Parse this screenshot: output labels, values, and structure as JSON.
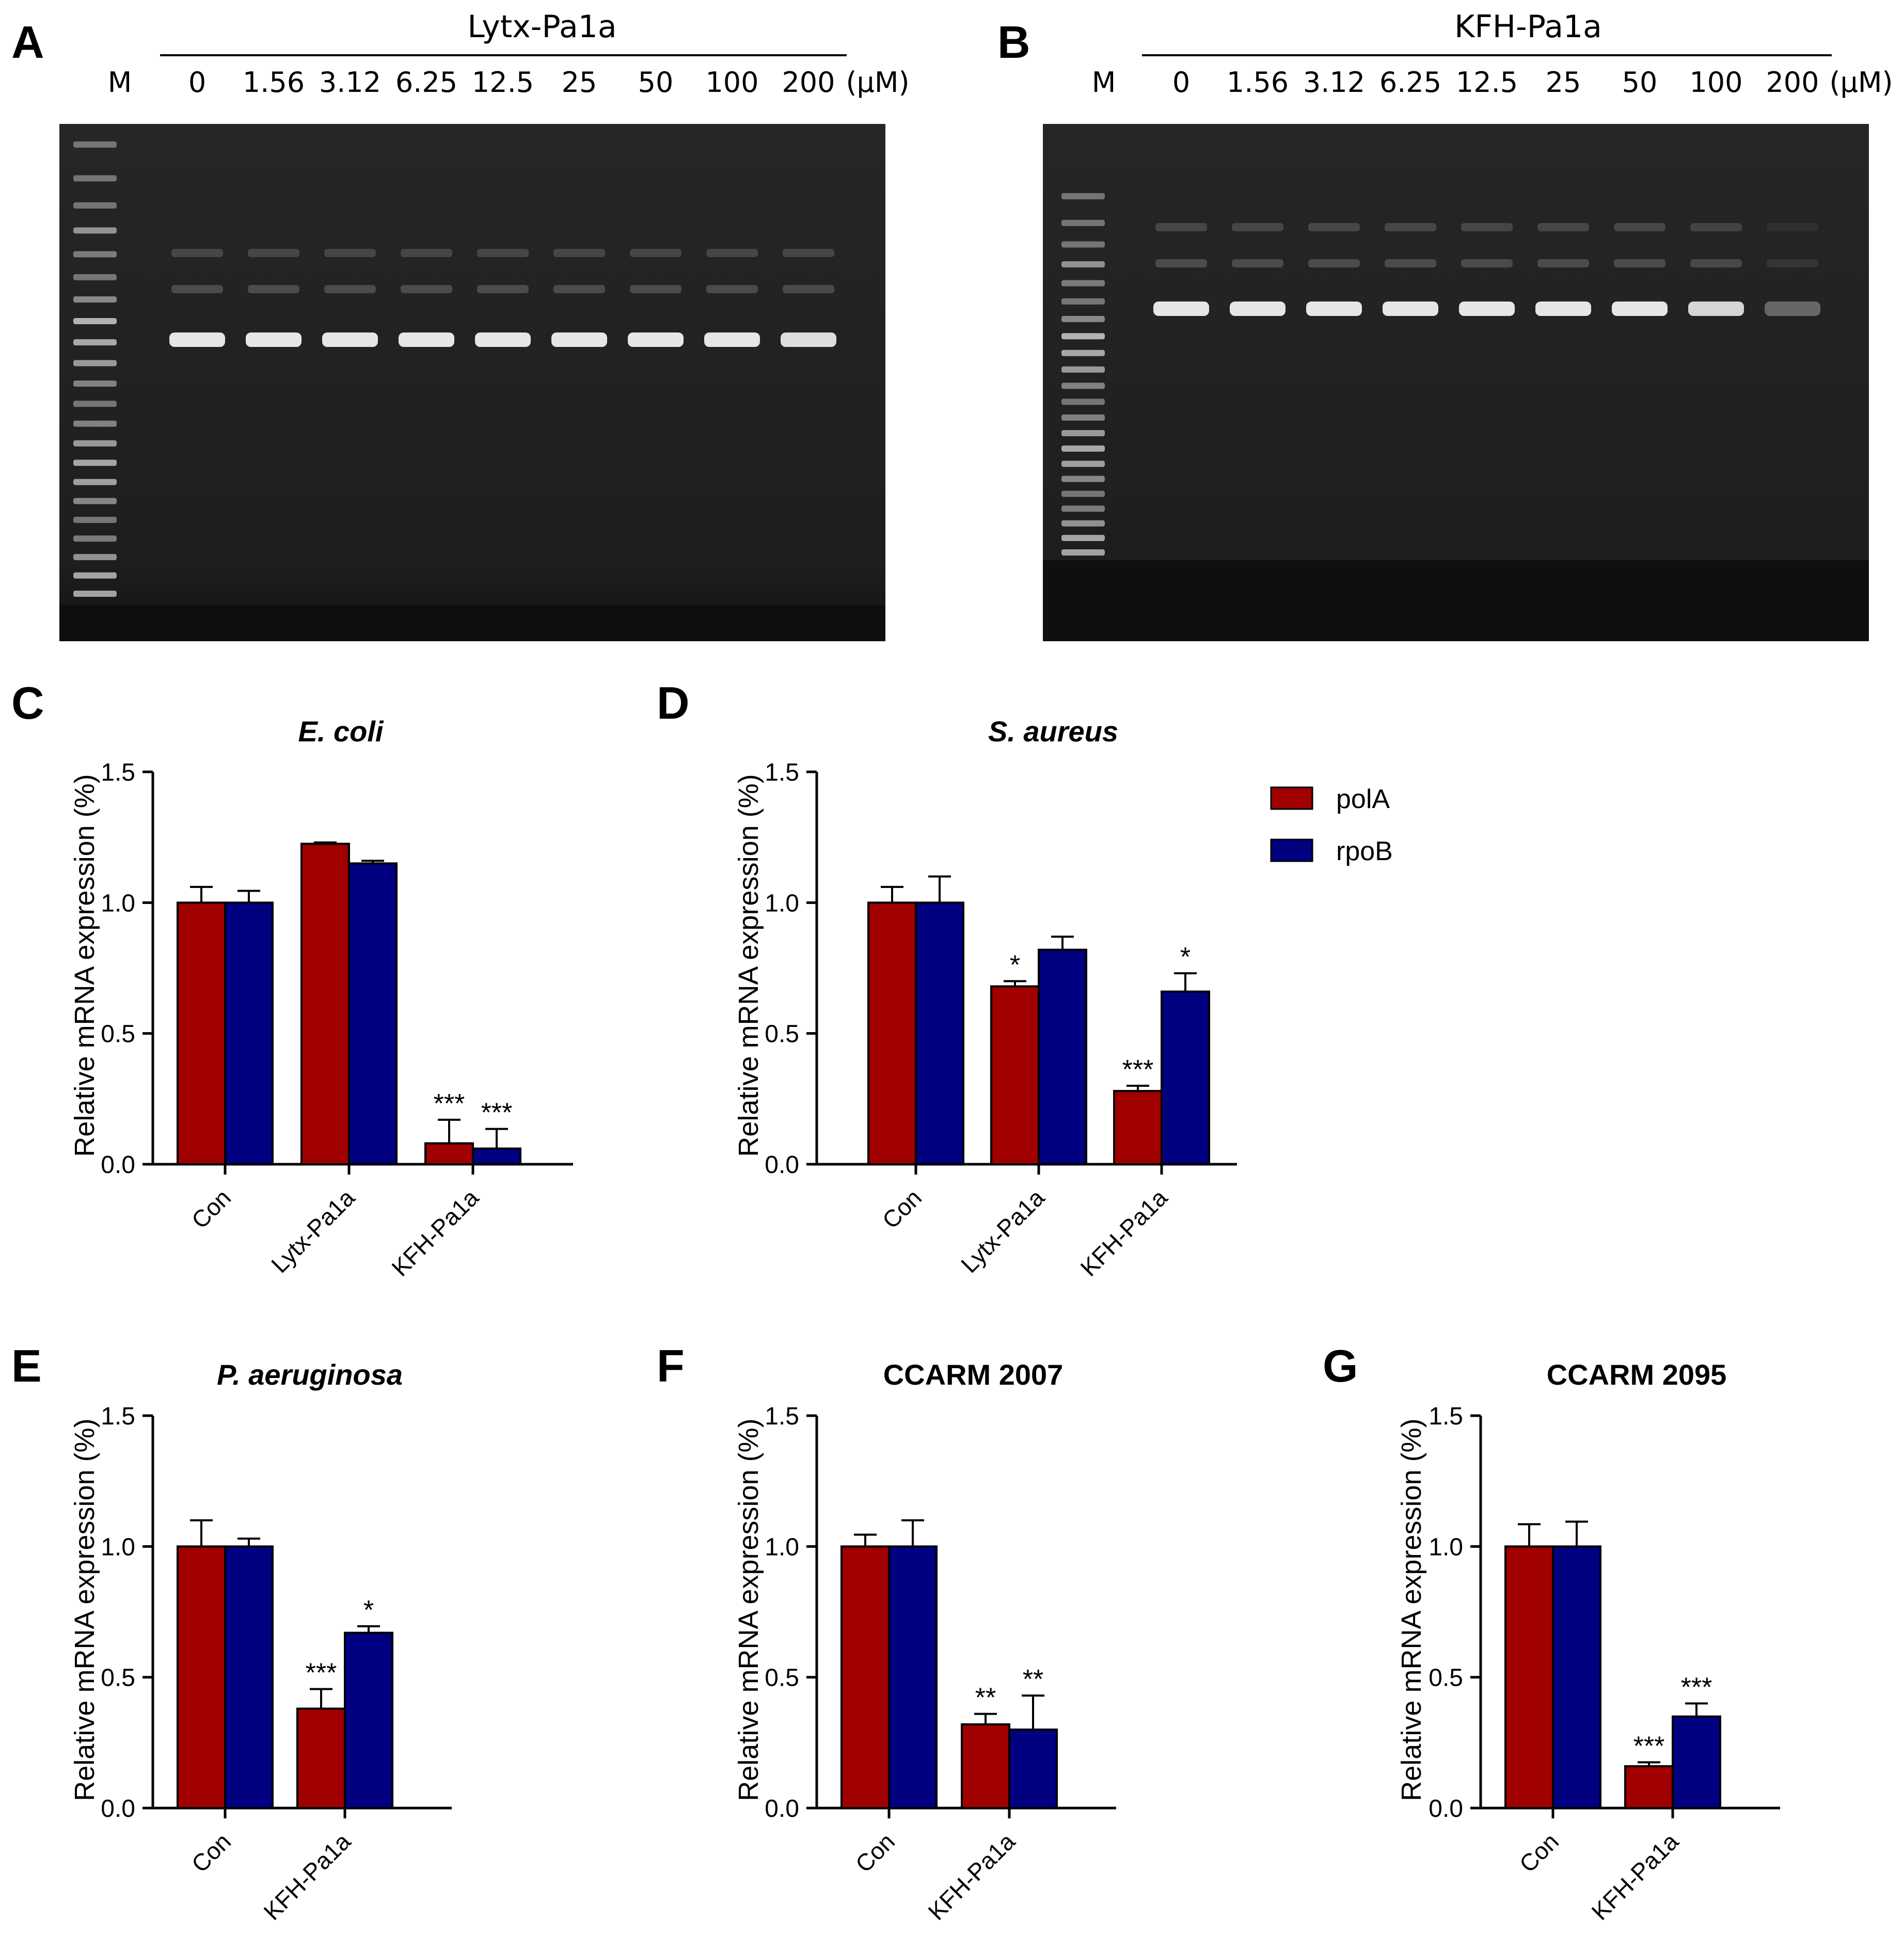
{
  "panels": {
    "A": "A",
    "B": "B",
    "C": "C",
    "D": "D",
    "E": "E",
    "F": "F",
    "G": "G"
  },
  "gels": [
    {
      "id": "A",
      "title": "Lytx-Pa1a",
      "marker_label": "M",
      "unit_label": "(µM)",
      "lanes": [
        "0",
        "1.56",
        "3.12",
        "6.25",
        "12.5",
        "25",
        "50",
        "100",
        "200"
      ],
      "band_intensity": [
        1,
        1,
        1,
        1,
        1,
        1,
        1,
        1,
        0.95
      ]
    },
    {
      "id": "B",
      "title": "KFH-Pa1a",
      "marker_label": "M",
      "unit_label": "(µM)",
      "lanes": [
        "0",
        "1.56",
        "3.12",
        "6.25",
        "12.5",
        "25",
        "50",
        "100",
        "200"
      ],
      "band_intensity": [
        1,
        1,
        1,
        1,
        1,
        1,
        1,
        0.9,
        0.25
      ]
    }
  ],
  "legend": [
    {
      "name": "polA",
      "color": "#a00000"
    },
    {
      "name": "rpoB",
      "color": "#000080"
    }
  ],
  "colors": {
    "polA": "#a00000",
    "rpoB": "#000080",
    "gel_bg": "#1c1c1c"
  },
  "chart_data": [
    {
      "id": "C",
      "type": "bar",
      "title": "E. coli",
      "title_italic": true,
      "ylabel": "Relative mRNA expression (%)",
      "ylim": [
        0,
        1.5
      ],
      "yticks": [
        "0.0",
        "0.5",
        "1.0",
        "1.5"
      ],
      "ytick_values": [
        0,
        0.5,
        1.0,
        1.5
      ],
      "categories": [
        "Con",
        "Lytx-Pa1a",
        "KFH-Pa1a"
      ],
      "series": [
        {
          "name": "polA",
          "values": [
            1.0,
            1.225,
            0.08
          ],
          "errors": [
            0.06,
            0.005,
            0.09
          ],
          "sig": [
            "",
            "",
            "***"
          ]
        },
        {
          "name": "rpoB",
          "values": [
            1.0,
            1.15,
            0.06
          ],
          "errors": [
            0.045,
            0.01,
            0.075
          ],
          "sig": [
            "",
            "",
            "***"
          ]
        }
      ]
    },
    {
      "id": "D",
      "type": "bar",
      "title": "S. aureus",
      "title_italic": true,
      "ylabel": "Relative mRNA expression (%)",
      "ylim": [
        0,
        1.5
      ],
      "yticks": [
        "0.0",
        "0.5",
        "1.0",
        "1.5"
      ],
      "ytick_values": [
        0,
        0.5,
        1.0,
        1.5
      ],
      "categories": [
        "Con",
        "Lytx-Pa1a",
        "KFH-Pa1a"
      ],
      "series": [
        {
          "name": "polA",
          "values": [
            1.0,
            0.68,
            0.28
          ],
          "errors": [
            0.06,
            0.02,
            0.02
          ],
          "sig": [
            "",
            "*",
            "***"
          ]
        },
        {
          "name": "rpoB",
          "values": [
            1.0,
            0.82,
            0.66
          ],
          "errors": [
            0.1,
            0.05,
            0.07
          ],
          "sig": [
            "",
            "",
            "*"
          ]
        }
      ]
    },
    {
      "id": "E",
      "type": "bar",
      "title": "P. aeruginosa",
      "title_italic": true,
      "ylabel": "Relative mRNA expression (%)",
      "ylim": [
        0,
        1.5
      ],
      "yticks": [
        "0.0",
        "0.5",
        "1.0",
        "1.5"
      ],
      "ytick_values": [
        0,
        0.5,
        1.0,
        1.5
      ],
      "categories": [
        "Con",
        "KFH-Pa1a"
      ],
      "series": [
        {
          "name": "polA",
          "values": [
            1.0,
            0.38
          ],
          "errors": [
            0.1,
            0.075
          ],
          "sig": [
            "",
            "***"
          ]
        },
        {
          "name": "rpoB",
          "values": [
            1.0,
            0.67
          ],
          "errors": [
            0.03,
            0.025
          ],
          "sig": [
            "",
            "*"
          ]
        }
      ]
    },
    {
      "id": "F",
      "type": "bar",
      "title": "CCARM 2007",
      "title_italic": false,
      "ylabel": "Relative mRNA expression (%)",
      "ylim": [
        0,
        1.5
      ],
      "yticks": [
        "0.0",
        "0.5",
        "1.0",
        "1.5"
      ],
      "ytick_values": [
        0,
        0.5,
        1.0,
        1.5
      ],
      "categories": [
        "Con",
        "KFH-Pa1a"
      ],
      "series": [
        {
          "name": "polA",
          "values": [
            1.0,
            0.32
          ],
          "errors": [
            0.045,
            0.04
          ],
          "sig": [
            "",
            "**"
          ]
        },
        {
          "name": "rpoB",
          "values": [
            1.0,
            0.3
          ],
          "errors": [
            0.1,
            0.13
          ],
          "sig": [
            "",
            "**"
          ]
        }
      ]
    },
    {
      "id": "G",
      "type": "bar",
      "title": "CCARM 2095",
      "title_italic": false,
      "ylabel": "Relative mRNA expression (%)",
      "ylim": [
        0,
        1.5
      ],
      "yticks": [
        "0.0",
        "0.5",
        "1.0",
        "1.5"
      ],
      "ytick_values": [
        0,
        0.5,
        1.0,
        1.5
      ],
      "categories": [
        "Con",
        "KFH-Pa1a"
      ],
      "series": [
        {
          "name": "polA",
          "values": [
            1.0,
            0.16
          ],
          "errors": [
            0.085,
            0.015
          ],
          "sig": [
            "",
            "***"
          ]
        },
        {
          "name": "rpoB",
          "values": [
            1.0,
            0.35
          ],
          "errors": [
            0.095,
            0.05
          ],
          "sig": [
            "",
            "***"
          ]
        }
      ]
    }
  ]
}
